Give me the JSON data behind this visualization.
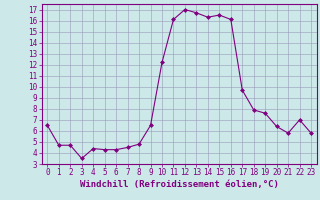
{
  "x": [
    0,
    1,
    2,
    3,
    4,
    5,
    6,
    7,
    8,
    9,
    10,
    11,
    12,
    13,
    14,
    15,
    16,
    17,
    18,
    19,
    20,
    21,
    22,
    23
  ],
  "y": [
    6.5,
    4.7,
    4.7,
    3.5,
    4.4,
    4.3,
    4.3,
    4.5,
    4.8,
    6.5,
    12.2,
    16.1,
    17.0,
    16.7,
    16.3,
    16.5,
    16.1,
    9.7,
    7.9,
    7.6,
    6.4,
    5.8,
    7.0,
    5.8
  ],
  "line_color": "#800080",
  "marker": "D",
  "marker_size": 2,
  "bg_color": "#cce8e8",
  "grid_color": "#9999bb",
  "xlabel": "Windchill (Refroidissement éolien,°C)",
  "xlim": [
    -0.5,
    23.5
  ],
  "ylim": [
    3,
    17.5
  ],
  "yticks": [
    3,
    4,
    5,
    6,
    7,
    8,
    9,
    10,
    11,
    12,
    13,
    14,
    15,
    16,
    17
  ],
  "xticks": [
    0,
    1,
    2,
    3,
    4,
    5,
    6,
    7,
    8,
    9,
    10,
    11,
    12,
    13,
    14,
    15,
    16,
    17,
    18,
    19,
    20,
    21,
    22,
    23
  ],
  "tick_fontsize": 5.5,
  "xlabel_fontsize": 6.5
}
